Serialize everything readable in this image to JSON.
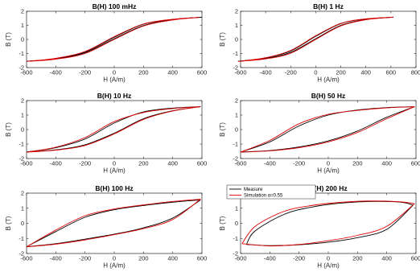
{
  "colors": {
    "measure": "#000000",
    "simulation": "#e00000",
    "axis": "#262626",
    "background": "#ffffff"
  },
  "chart_data": [
    {
      "type": "line",
      "title": "B(H) 100 mHz",
      "xlabel": "H (A/m)",
      "ylabel": "B (T)",
      "xlim": [
        -600,
        600
      ],
      "ylim": [
        -2,
        2
      ],
      "xticks": [
        "-600",
        "-400",
        "-200",
        "0",
        "200",
        "400",
        "600"
      ],
      "yticks": [
        "-2",
        "-1",
        "0",
        "1",
        "2"
      ],
      "series": [
        {
          "role": "measure",
          "ascending": [
            [
              -600,
              -1.55
            ],
            [
              -400,
              -1.38
            ],
            [
              -200,
              -0.95
            ],
            [
              0,
              0.05
            ],
            [
              200,
              0.98
            ],
            [
              400,
              1.4
            ],
            [
              600,
              1.58
            ]
          ],
          "descending": [
            [
              600,
              1.58
            ],
            [
              400,
              1.42
            ],
            [
              200,
              1.08
            ],
            [
              0,
              0.15
            ],
            [
              -200,
              -0.9
            ],
            [
              -400,
              -1.36
            ],
            [
              -600,
              -1.55
            ]
          ]
        },
        {
          "role": "simulation",
          "ascending": [
            [
              -600,
              -1.56
            ],
            [
              -400,
              -1.4
            ],
            [
              -200,
              -1.0
            ],
            [
              0,
              0.0
            ],
            [
              200,
              0.95
            ],
            [
              400,
              1.38
            ],
            [
              580,
              1.57
            ]
          ],
          "descending": [
            [
              580,
              1.57
            ],
            [
              400,
              1.43
            ],
            [
              200,
              1.1
            ],
            [
              0,
              0.2
            ],
            [
              -200,
              -0.85
            ],
            [
              -400,
              -1.34
            ],
            [
              -600,
              -1.56
            ]
          ]
        }
      ]
    },
    {
      "type": "line",
      "title": "B(H) 1 Hz",
      "xlabel": "H (A/m)",
      "ylabel": "B (T)",
      "xlim": [
        -600,
        800
      ],
      "ylim": [
        -2,
        2
      ],
      "xticks": [
        "-600",
        "-400",
        "-200",
        "0",
        "200",
        "400",
        "600",
        "800"
      ],
      "yticks": [
        "-2",
        "-1",
        "0",
        "1",
        "2"
      ],
      "series": [
        {
          "role": "measure",
          "ascending": [
            [
              -620,
              -1.55
            ],
            [
              -400,
              -1.36
            ],
            [
              -200,
              -0.92
            ],
            [
              0,
              0.05
            ],
            [
              200,
              1.0
            ],
            [
              400,
              1.42
            ],
            [
              620,
              1.58
            ]
          ],
          "descending": [
            [
              620,
              1.58
            ],
            [
              400,
              1.45
            ],
            [
              200,
              1.12
            ],
            [
              0,
              0.22
            ],
            [
              -200,
              -0.82
            ],
            [
              -400,
              -1.32
            ],
            [
              -620,
              -1.55
            ]
          ]
        },
        {
          "role": "simulation",
          "ascending": [
            [
              -620,
              -1.56
            ],
            [
              -400,
              -1.38
            ],
            [
              -200,
              -0.98
            ],
            [
              0,
              0.0
            ],
            [
              200,
              0.96
            ],
            [
              400,
              1.4
            ],
            [
              620,
              1.58
            ]
          ],
          "descending": [
            [
              620,
              1.58
            ],
            [
              400,
              1.46
            ],
            [
              200,
              1.14
            ],
            [
              0,
              0.26
            ],
            [
              -200,
              -0.78
            ],
            [
              -400,
              -1.3
            ],
            [
              -620,
              -1.56
            ]
          ]
        }
      ]
    },
    {
      "type": "line",
      "title": "B(H) 10 Hz",
      "xlabel": "H (A/m)",
      "ylabel": "B (T)",
      "xlim": [
        -600,
        600
      ],
      "ylim": [
        -2,
        2
      ],
      "xticks": [
        "-600",
        "-400",
        "-200",
        "0",
        "200",
        "400",
        "600"
      ],
      "yticks": [
        "-2",
        "-1",
        "0",
        "1",
        "2"
      ],
      "series": [
        {
          "role": "measure",
          "ascending": [
            [
              -600,
              -1.55
            ],
            [
              -400,
              -1.4
            ],
            [
              -200,
              -1.05
            ],
            [
              0,
              -0.25
            ],
            [
              200,
              0.75
            ],
            [
              400,
              1.3
            ],
            [
              590,
              1.58
            ]
          ],
          "descending": [
            [
              590,
              1.58
            ],
            [
              400,
              1.48
            ],
            [
              200,
              1.22
            ],
            [
              0,
              0.45
            ],
            [
              -200,
              -0.65
            ],
            [
              -400,
              -1.25
            ],
            [
              -600,
              -1.55
            ]
          ]
        },
        {
          "role": "simulation",
          "ascending": [
            [
              -600,
              -1.56
            ],
            [
              -400,
              -1.42
            ],
            [
              -200,
              -1.1
            ],
            [
              0,
              -0.3
            ],
            [
              200,
              0.7
            ],
            [
              400,
              1.28
            ],
            [
              590,
              1.58
            ]
          ],
          "descending": [
            [
              590,
              1.58
            ],
            [
              400,
              1.45
            ],
            [
              200,
              1.18
            ],
            [
              0,
              0.55
            ],
            [
              -200,
              -0.55
            ],
            [
              -400,
              -1.22
            ],
            [
              -600,
              -1.56
            ]
          ]
        }
      ]
    },
    {
      "type": "line",
      "title": "B(H) 50 Hz",
      "xlabel": "H (A/m)",
      "ylabel": "B (T)",
      "xlim": [
        -600,
        600
      ],
      "ylim": [
        -2,
        2
      ],
      "xticks": [
        "-600",
        "-400",
        "-200",
        "0",
        "200",
        "400",
        "600"
      ],
      "yticks": [
        "-2",
        "-1",
        "0",
        "1",
        "2"
      ],
      "series": [
        {
          "role": "measure",
          "ascending": [
            [
              -600,
              -1.55
            ],
            [
              -400,
              -1.45
            ],
            [
              -200,
              -1.2
            ],
            [
              0,
              -0.78
            ],
            [
              200,
              -0.1
            ],
            [
              400,
              0.85
            ],
            [
              590,
              1.58
            ]
          ],
          "descending": [
            [
              590,
              1.58
            ],
            [
              400,
              1.52
            ],
            [
              200,
              1.35
            ],
            [
              0,
              1.0
            ],
            [
              -200,
              0.25
            ],
            [
              -400,
              -0.85
            ],
            [
              -600,
              -1.55
            ]
          ]
        },
        {
          "role": "simulation",
          "ascending": [
            [
              -600,
              -1.56
            ],
            [
              -400,
              -1.47
            ],
            [
              -200,
              -1.25
            ],
            [
              0,
              -0.85
            ],
            [
              200,
              -0.2
            ],
            [
              400,
              0.75
            ],
            [
              590,
              1.58
            ]
          ],
          "descending": [
            [
              590,
              1.58
            ],
            [
              400,
              1.5
            ],
            [
              200,
              1.32
            ],
            [
              0,
              1.05
            ],
            [
              -200,
              0.4
            ],
            [
              -400,
              -0.75
            ],
            [
              -600,
              -1.56
            ]
          ]
        }
      ]
    },
    {
      "type": "line",
      "title": "B(H) 100 Hz",
      "xlabel": "H (A/m)",
      "ylabel": "B (T)",
      "xlim": [
        -600,
        600
      ],
      "ylim": [
        -2,
        2
      ],
      "xticks": [
        "-600",
        "-400",
        "-200",
        "0",
        "200",
        "400",
        "600"
      ],
      "yticks": [
        "-2",
        "-1",
        "0",
        "1",
        "2"
      ],
      "series": [
        {
          "role": "measure",
          "ascending": [
            [
              -600,
              -1.55
            ],
            [
              -400,
              -1.35
            ],
            [
              -200,
              -1.05
            ],
            [
              0,
              -0.72
            ],
            [
              200,
              -0.3
            ],
            [
              400,
              0.35
            ],
            [
              590,
              1.55
            ]
          ],
          "descending": [
            [
              590,
              1.55
            ],
            [
              400,
              1.4
            ],
            [
              200,
              1.18
            ],
            [
              0,
              0.9
            ],
            [
              -200,
              0.4
            ],
            [
              -400,
              -0.55
            ],
            [
              -600,
              -1.55
            ]
          ]
        },
        {
          "role": "simulation",
          "ascending": [
            [
              -600,
              -1.56
            ],
            [
              -400,
              -1.38
            ],
            [
              -200,
              -1.1
            ],
            [
              0,
              -0.75
            ],
            [
              200,
              -0.35
            ],
            [
              400,
              0.25
            ],
            [
              590,
              1.6
            ]
          ],
          "descending": [
            [
              590,
              1.6
            ],
            [
              400,
              1.45
            ],
            [
              200,
              1.22
            ],
            [
              0,
              0.95
            ],
            [
              -200,
              0.5
            ],
            [
              -400,
              -0.45
            ],
            [
              -600,
              -1.56
            ]
          ]
        }
      ]
    },
    {
      "type": "line",
      "title": "B(H) 200 Hz",
      "xlabel": "H (A/m)",
      "ylabel": "B (T)",
      "xlim": [
        -600,
        600
      ],
      "ylim": [
        -2,
        2
      ],
      "xticks": [
        "-600",
        "-400",
        "-200",
        "0",
        "200",
        "400",
        "600"
      ],
      "yticks": [
        "-2",
        "-1",
        "0",
        "1",
        "2"
      ],
      "legend": {
        "position": "top-left",
        "entries": [
          "Measure",
          "Simulation α=0.55"
        ]
      },
      "series": [
        {
          "role": "measure",
          "ascending": [
            [
              -560,
              -1.4
            ],
            [
              -400,
              -1.48
            ],
            [
              -200,
              -1.42
            ],
            [
              0,
              -1.25
            ],
            [
              200,
              -0.95
            ],
            [
              400,
              -0.4
            ],
            [
              580,
              1.2
            ]
          ],
          "descending": [
            [
              580,
              1.2
            ],
            [
              500,
              1.4
            ],
            [
              300,
              1.45
            ],
            [
              100,
              1.35
            ],
            [
              -100,
              1.1
            ],
            [
              -300,
              0.6
            ],
            [
              -500,
              -0.5
            ],
            [
              -560,
              -1.4
            ]
          ]
        },
        {
          "role": "simulation",
          "ascending": [
            [
              -590,
              -1.35
            ],
            [
              -400,
              -1.5
            ],
            [
              -200,
              -1.4
            ],
            [
              0,
              -1.15
            ],
            [
              200,
              -0.8
            ],
            [
              400,
              -0.2
            ],
            [
              590,
              1.3
            ]
          ],
          "descending": [
            [
              590,
              1.3
            ],
            [
              500,
              1.42
            ],
            [
              300,
              1.48
            ],
            [
              100,
              1.4
            ],
            [
              -100,
              1.2
            ],
            [
              -300,
              0.8
            ],
            [
              -500,
              -0.2
            ],
            [
              -590,
              -1.35
            ]
          ]
        }
      ]
    }
  ]
}
